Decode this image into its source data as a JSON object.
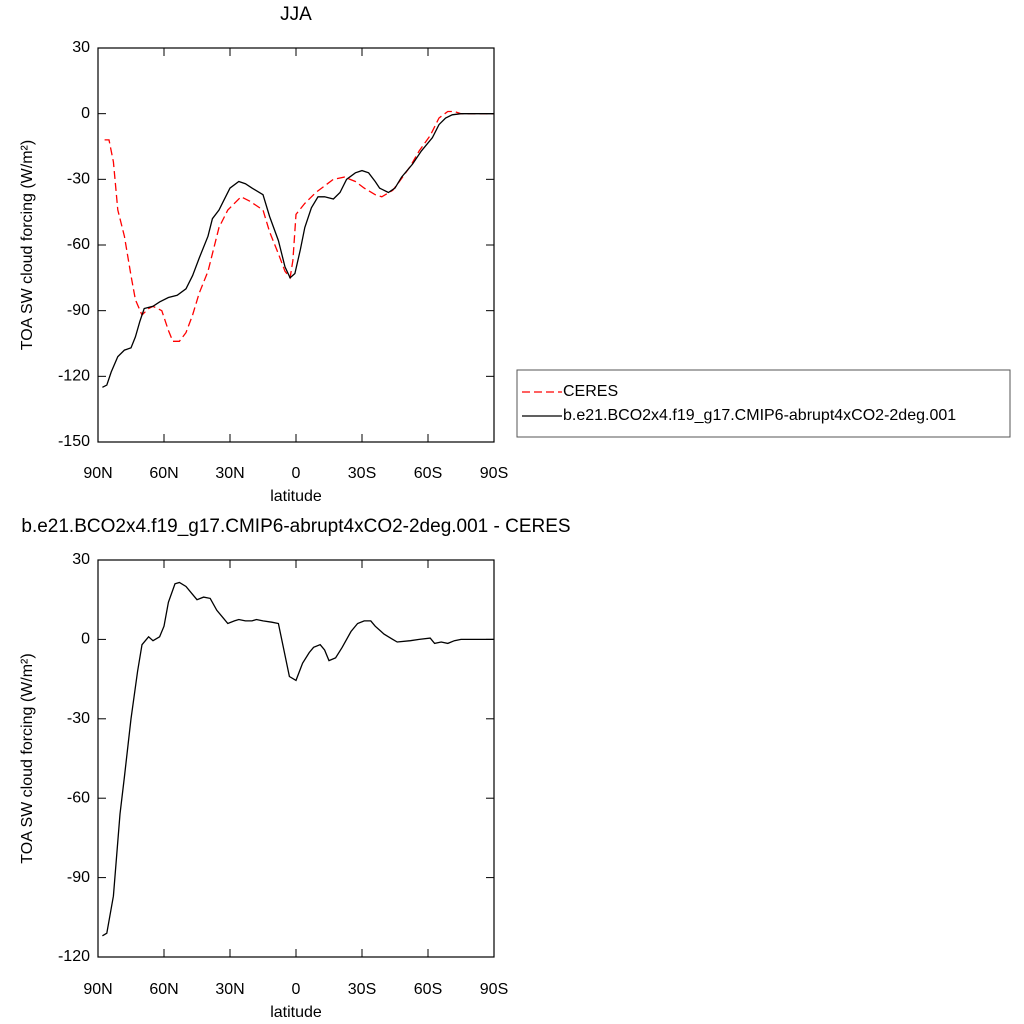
{
  "chart_data": [
    {
      "type": "line",
      "title": "JJA",
      "xlabel": "latitude",
      "ylabel": "TOA SW cloud forcing (W/m²)",
      "xlim": [
        90,
        -90
      ],
      "xticks": [
        {
          "value": 90,
          "label": "90N"
        },
        {
          "value": 60,
          "label": "60N"
        },
        {
          "value": 30,
          "label": "30N"
        },
        0,
        {
          "value": -30,
          "label": "30S"
        },
        {
          "value": -60,
          "label": "60S"
        },
        {
          "value": -90,
          "label": "90S"
        }
      ],
      "ylim": [
        -150,
        30
      ],
      "yticks": [
        30,
        0,
        -30,
        -60,
        -90,
        -120,
        -150
      ],
      "legend": "right",
      "series": [
        {
          "name": "CERES",
          "color": "#ff0000",
          "dashed": true,
          "x": [
            87,
            85,
            83,
            81,
            78,
            75,
            73,
            70,
            67,
            65,
            61,
            58,
            56,
            53,
            50,
            47,
            44,
            40,
            37,
            35,
            31,
            25,
            21,
            15,
            12,
            8,
            5,
            2.7,
            1.4,
            0,
            -4,
            -9,
            -13,
            -17,
            -22,
            -27,
            -31,
            -36,
            -39,
            -44,
            -47,
            -52,
            -56,
            -61,
            -65,
            -69,
            -72,
            -75,
            -90
          ],
          "values": [
            -12,
            -12,
            -22,
            -44,
            -56,
            -74,
            -85,
            -92,
            -89,
            -88,
            -90,
            -99,
            -104,
            -104,
            -100,
            -92,
            -82,
            -72,
            -60,
            -52,
            -44,
            -38,
            -40,
            -44,
            -54,
            -64,
            -72,
            -75,
            -67,
            -46,
            -41,
            -36,
            -33,
            -30,
            -29,
            -31,
            -34,
            -37,
            -38,
            -35,
            -31,
            -24,
            -17,
            -10,
            -2,
            1,
            1,
            0,
            0
          ]
        },
        {
          "name": "b.e21.BCO2x4.f19_g17.CMIP6-abrupt4xCO2-2deg.001",
          "color": "#000000",
          "dashed": false,
          "x": [
            88,
            86,
            84,
            81,
            78,
            75,
            73,
            71,
            69,
            65,
            62,
            58,
            54,
            50,
            47,
            44,
            40,
            38,
            35,
            33,
            30,
            26,
            23,
            20,
            15,
            12,
            8,
            5,
            2.7,
            0.5,
            -2,
            -4,
            -7,
            -10,
            -13,
            -17,
            -20,
            -23,
            -27,
            -30,
            -33,
            -36,
            -38,
            -42,
            -45,
            -48,
            -53,
            -57,
            -62,
            -65,
            -68,
            -71,
            -75,
            -90
          ],
          "values": [
            -125,
            -124,
            -118,
            -111,
            -108,
            -107,
            -102,
            -95,
            -89,
            -88,
            -86,
            -84,
            -83,
            -80,
            -74,
            -66,
            -56,
            -48,
            -44,
            -40,
            -34,
            -31,
            -32,
            -34,
            -37,
            -47,
            -58,
            -70,
            -75,
            -73,
            -62,
            -52,
            -43,
            -38,
            -38,
            -39,
            -36,
            -30,
            -27,
            -26,
            -27,
            -31,
            -34,
            -36,
            -34,
            -29,
            -23,
            -17,
            -11,
            -5,
            -2,
            -0.5,
            0,
            0
          ]
        }
      ]
    },
    {
      "type": "line",
      "title": "b.e21.BCO2x4.f19_g17.CMIP6-abrupt4xCO2-2deg.001 - CERES",
      "xlabel": "latitude",
      "ylabel": "TOA SW cloud forcing (W/m²)",
      "xlim": [
        90,
        -90
      ],
      "xticks": [
        {
          "value": 90,
          "label": "90N"
        },
        {
          "value": 60,
          "label": "60N"
        },
        {
          "value": 30,
          "label": "30N"
        },
        0,
        {
          "value": -30,
          "label": "30S"
        },
        {
          "value": -60,
          "label": "60S"
        },
        {
          "value": -90,
          "label": "90S"
        }
      ],
      "ylim": [
        -120,
        30
      ],
      "yticks": [
        30,
        0,
        -30,
        -60,
        -90,
        -120
      ],
      "series": [
        {
          "color": "#000000",
          "dashed": false,
          "x": [
            88,
            86,
            83,
            80,
            78,
            75,
            72,
            70,
            67,
            65,
            62,
            60,
            58,
            55,
            53,
            50,
            47,
            45,
            42,
            39,
            36,
            33,
            31,
            28,
            26,
            23,
            20,
            18,
            15,
            11,
            8,
            3,
            0,
            -3,
            -6,
            -8,
            -11,
            -13,
            -15,
            -18,
            -21,
            -25,
            -28,
            -31,
            -34,
            -36,
            -40,
            -44,
            -46,
            -52,
            -56,
            -61,
            -63,
            -66,
            -69,
            -72,
            -75,
            -90
          ],
          "values": [
            -112,
            -111,
            -97,
            -66,
            -52,
            -30,
            -12,
            -2,
            1,
            -0.5,
            1,
            5,
            14,
            21,
            21.5,
            20,
            17,
            15,
            16,
            15.5,
            11,
            8,
            6,
            7,
            7.5,
            7,
            7,
            7.5,
            7,
            6.5,
            6,
            -14,
            -15.5,
            -9,
            -5,
            -3,
            -2,
            -4,
            -8,
            -7,
            -3,
            3,
            6,
            7,
            7,
            5,
            2,
            0,
            -1,
            -0.5,
            0,
            0.5,
            -1.5,
            -1,
            -1.5,
            -0.5,
            0,
            0
          ]
        }
      ]
    }
  ]
}
